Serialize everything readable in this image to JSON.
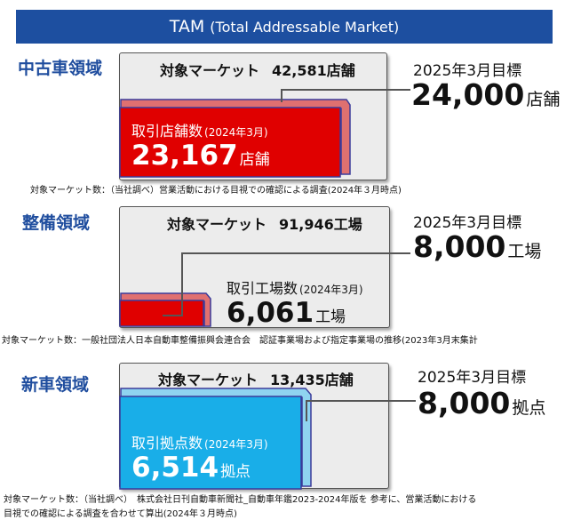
{
  "banner": {
    "title": "TAM",
    "subtitle": "(Total Addressable Market)"
  },
  "colors": {
    "banner": "#1d4fa0",
    "label": "#1f4d9e",
    "red": "#e00000",
    "blue": "#19aee8"
  },
  "sections": [
    {
      "label": "中古車領域",
      "market_label": "対象マーケット",
      "market_value": "42,581店舗",
      "target_label": "2025年3月目標",
      "target_value": "24,000",
      "target_unit": "店舗",
      "deal_label": "取引店舗数",
      "deal_date": "(2024年3月)",
      "deal_value": "23,167",
      "deal_unit": "店舗",
      "note": "対象マーケット数：（当社調べ）営業活動における目視での確認による調査(2024年３月時点)"
    },
    {
      "label": "整備領域",
      "market_label": "対象マーケット",
      "market_value": "91,946工場",
      "target_label": "2025年3月目標",
      "target_value": "8,000",
      "target_unit": "工場",
      "deal_label": "取引工場数",
      "deal_date": "(2024年3月)",
      "deal_value": "6,061",
      "deal_unit": "工場",
      "note": "対象マーケット数：一般社団法人日本自動車整備振興会連合会　認証事業場および指定事業場の推移(2023年3月末集計"
    },
    {
      "label": "新車領域",
      "market_label": "対象マーケット",
      "market_value": "13,435店舗",
      "target_label": "2025年3月目標",
      "target_value": "8,000",
      "target_unit": "拠点",
      "deal_label": "取引拠点数",
      "deal_date": "(2024年3月)",
      "deal_value": "6,514",
      "deal_unit": "拠点",
      "note": "対象マーケット数：（当社調べ）　株式会社日刊自動車新聞社_自動車年鑑2023-2024年版を 参考に、営業活動における",
      "note2": "目視での確認による調査を合わせて算出(2024年３月時点)"
    }
  ]
}
